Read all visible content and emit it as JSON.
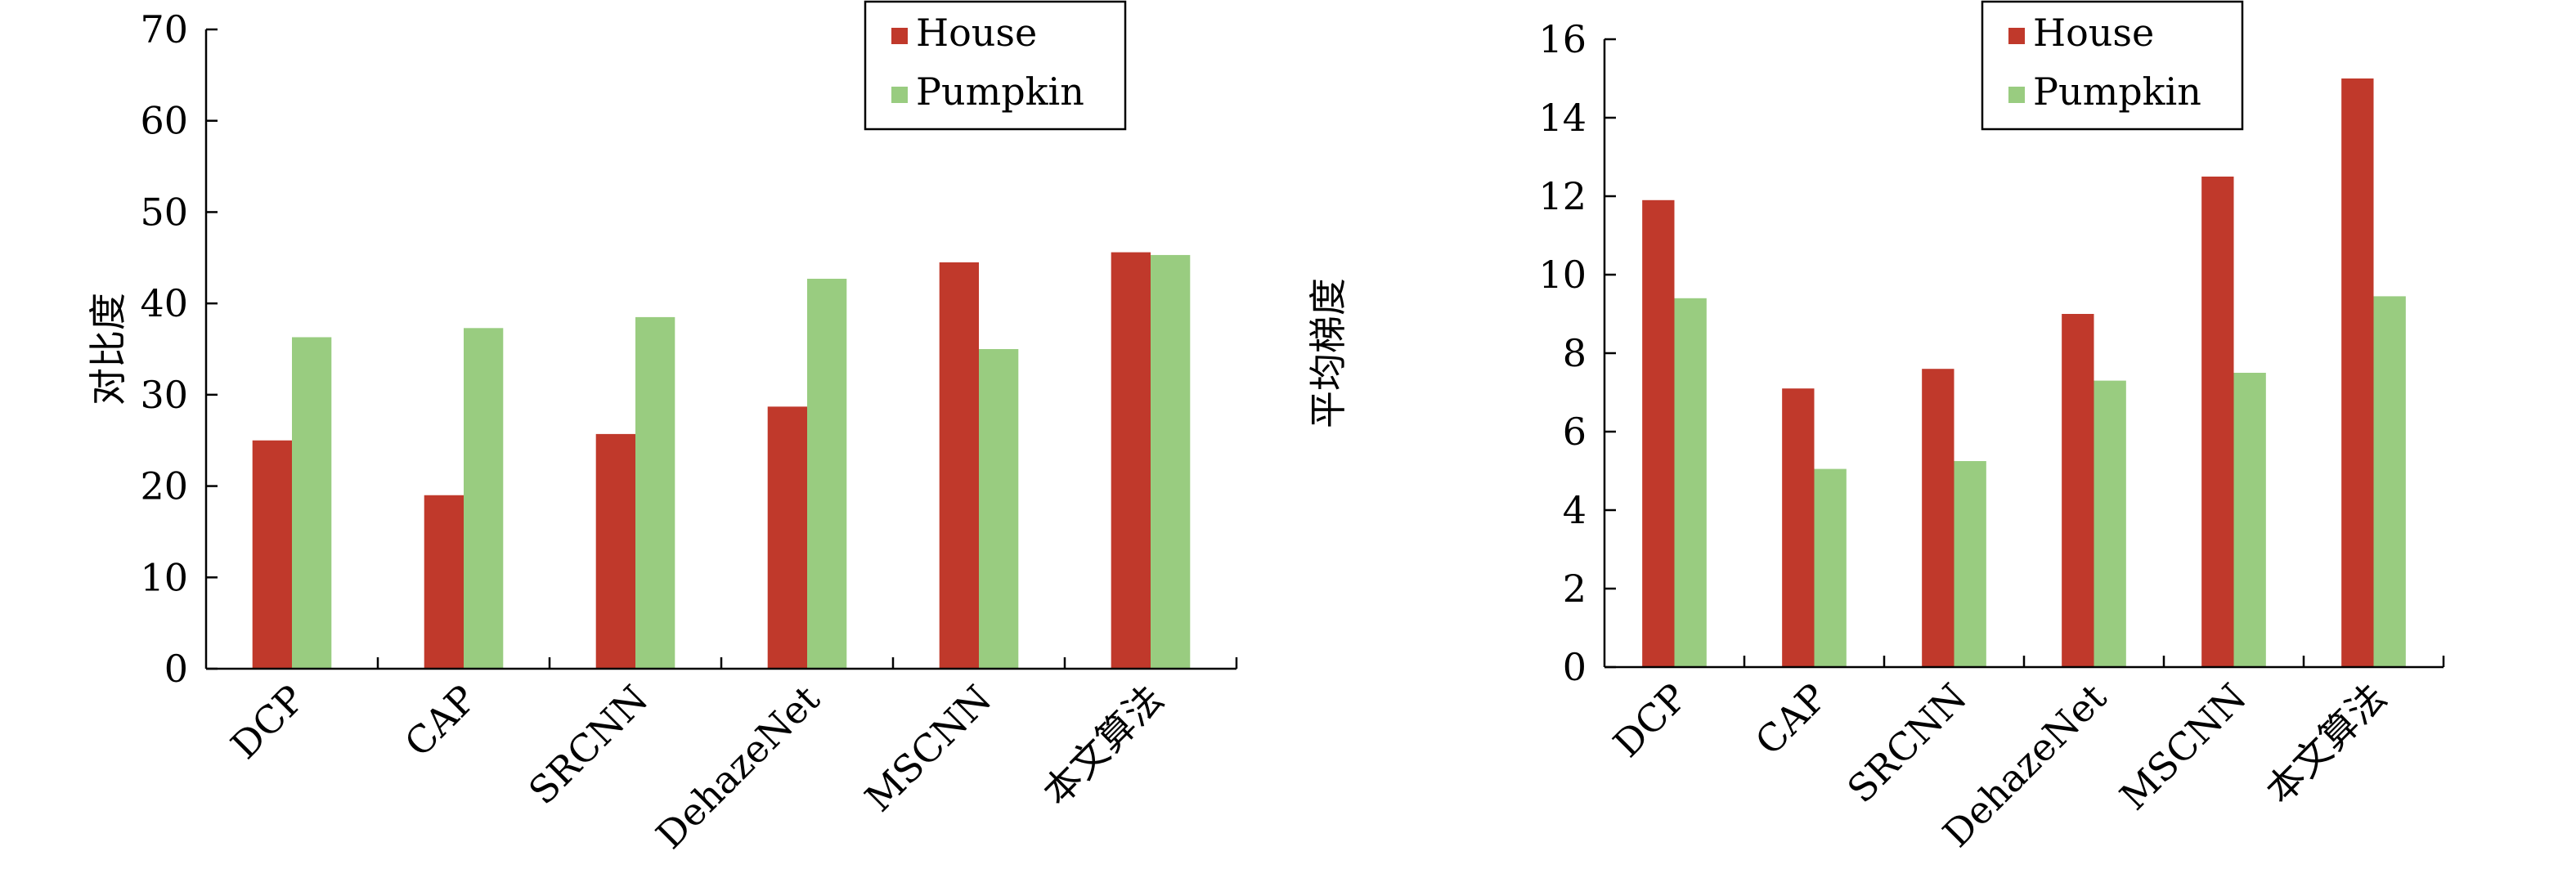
{
  "chart_data": [
    {
      "type": "bar",
      "categories": [
        "DCP",
        "CAP",
        "SRCNN",
        "DehazeNet",
        "MSCNN",
        "本文算法"
      ],
      "series": [
        {
          "name": "House",
          "values": [
            25,
            19,
            25.7,
            28.7,
            44.5,
            45.6
          ]
        },
        {
          "name": "Pumpkin",
          "values": [
            36.3,
            37.3,
            38.5,
            42.7,
            35,
            45.3
          ]
        }
      ],
      "ylabel": "对比度",
      "ylim": [
        0,
        70
      ],
      "yticks": [
        0,
        10,
        20,
        30,
        40,
        50,
        60,
        70
      ],
      "grid": false,
      "legend_position": "top-right"
    },
    {
      "type": "bar",
      "categories": [
        "DCP",
        "CAP",
        "SRCNN",
        "DehazeNet",
        "MSCNN",
        "本文算法"
      ],
      "series": [
        {
          "name": "House",
          "values": [
            11.9,
            7.1,
            7.6,
            9,
            12.5,
            15
          ]
        },
        {
          "name": "Pumpkin",
          "values": [
            9.4,
            5.05,
            5.25,
            7.3,
            7.5,
            9.45
          ]
        }
      ],
      "ylabel": "平均梯度",
      "ylim": [
        0,
        16
      ],
      "yticks": [
        0,
        2,
        4,
        6,
        8,
        10,
        12,
        14,
        16
      ],
      "grid": false,
      "legend_position": "top-right"
    }
  ],
  "colors": {
    "House": "#c0392b",
    "Pumpkin": "#99cc80"
  }
}
